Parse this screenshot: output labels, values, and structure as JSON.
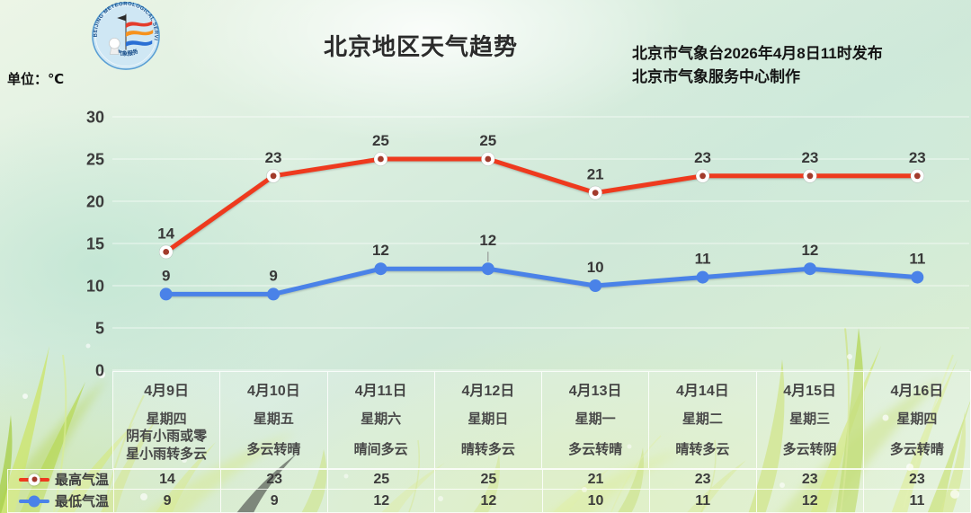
{
  "header": {
    "title": "北京地区天气趋势",
    "issue_line1": "北京市气象台2026年4月8日11时发布",
    "issue_line2": "北京市气象服务中心制作",
    "unit_label": "单位：℃",
    "logo": {
      "text_top": "BEIJING METEOROLOGICAL SERVICE",
      "text_bottom": "气象服务"
    }
  },
  "chart_data": {
    "type": "line",
    "title": "北京地区天气趋势",
    "categories": [
      "4月9日",
      "4月10日",
      "4月11日",
      "4月12日",
      "4月13日",
      "4月14日",
      "4月15日",
      "4月16日"
    ],
    "series": [
      {
        "name": "最高气温",
        "values": [
          14,
          23,
          25,
          25,
          21,
          23,
          23,
          23
        ],
        "color": "#ee3a1e",
        "marker": "ring",
        "marker_inner": "#a23b2c"
      },
      {
        "name": "最低气温",
        "values": [
          9,
          9,
          12,
          12,
          10,
          11,
          12,
          11
        ],
        "color": "#4a82e8",
        "marker": "dot"
      }
    ],
    "ylim": [
      0,
      30
    ],
    "yticks": [
      30,
      25,
      20,
      15,
      10,
      5,
      0
    ],
    "grid": true,
    "legend_position": "bottom-left-table",
    "label_callout": {
      "series_index": 1,
      "point_index": 3
    },
    "label_color": "#383838",
    "tick_color": "#3c3c3c",
    "gridline_color": "rgba(255,255,255,0.65)"
  },
  "table": {
    "row_labels": {
      "high": "最高气温",
      "low": "最低气温"
    },
    "columns": [
      {
        "date": "4月9日",
        "weekday": "星期四",
        "weather": "阴有小雨或零星小雨转多云",
        "high": "14",
        "low": "9"
      },
      {
        "date": "4月10日",
        "weekday": "星期五",
        "weather": "多云转晴",
        "high": "23",
        "low": "9"
      },
      {
        "date": "4月11日",
        "weekday": "星期六",
        "weather": "晴间多云",
        "high": "25",
        "low": "12"
      },
      {
        "date": "4月12日",
        "weekday": "星期日",
        "weather": "晴转多云",
        "high": "25",
        "low": "12"
      },
      {
        "date": "4月13日",
        "weekday": "星期一",
        "weather": "多云转晴",
        "high": "21",
        "low": "10"
      },
      {
        "date": "4月14日",
        "weekday": "星期二",
        "weather": "晴转多云",
        "high": "23",
        "low": "11"
      },
      {
        "date": "4月15日",
        "weekday": "星期三",
        "weather": "多云转阴",
        "high": "23",
        "low": "12"
      },
      {
        "date": "4月16日",
        "weekday": "星期四",
        "weather": "多云转晴",
        "high": "23",
        "low": "11"
      }
    ]
  }
}
